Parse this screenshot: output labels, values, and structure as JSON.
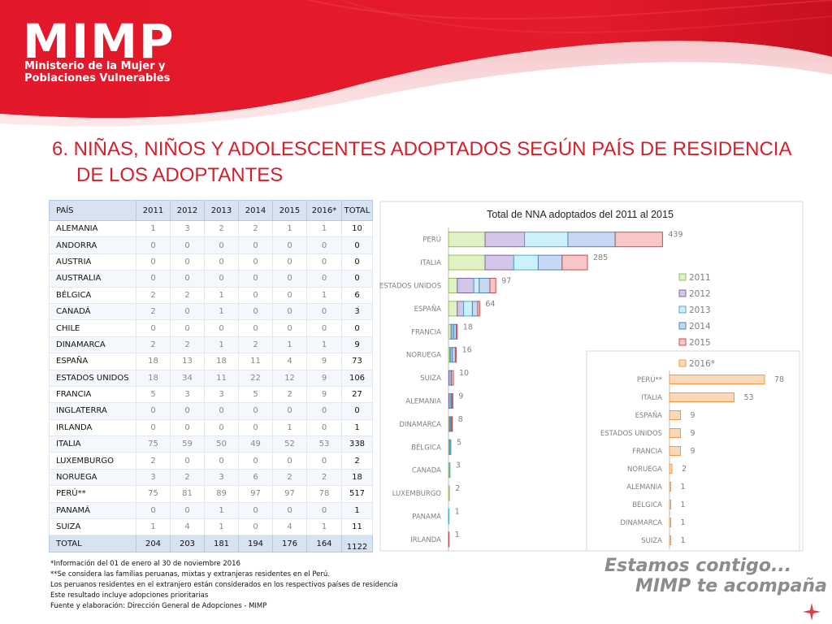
{
  "header": {
    "logo": "MIMP",
    "org_line1": "Ministerio de la Mujer y",
    "org_line2": "Poblaciones Vulnerables"
  },
  "title": {
    "line1": "6. NIÑAS, NIÑOS Y ADOLESCENTES ADOPTADOS SEGÚN PAÍS DE RESIDENCIA",
    "line2": "DE LOS ADOPTANTES"
  },
  "table": {
    "headers": [
      "PAÍS",
      "2011",
      "2012",
      "2013",
      "2014",
      "2015",
      "2016*",
      "TOTAL"
    ],
    "rows": [
      [
        "ALEMANIA",
        "1",
        "3",
        "2",
        "2",
        "1",
        "1",
        "10"
      ],
      [
        "ANDORRA",
        "0",
        "0",
        "0",
        "0",
        "0",
        "0",
        "0"
      ],
      [
        "AUSTRIA",
        "0",
        "0",
        "0",
        "0",
        "0",
        "0",
        "0"
      ],
      [
        "AUSTRALIA",
        "0",
        "0",
        "0",
        "0",
        "0",
        "0",
        "0"
      ],
      [
        "BÉLGICA",
        "2",
        "2",
        "1",
        "0",
        "0",
        "1",
        "6"
      ],
      [
        "CANADÁ",
        "2",
        "0",
        "1",
        "0",
        "0",
        "0",
        "3"
      ],
      [
        "CHILE",
        "0",
        "0",
        "0",
        "0",
        "0",
        "0",
        "0"
      ],
      [
        "DINAMARCA",
        "2",
        "2",
        "1",
        "2",
        "1",
        "1",
        "9"
      ],
      [
        "ESPAÑA",
        "18",
        "13",
        "18",
        "11",
        "4",
        "9",
        "73"
      ],
      [
        "ESTADOS UNIDOS",
        "18",
        "34",
        "11",
        "22",
        "12",
        "9",
        "106"
      ],
      [
        "FRANCIA",
        "5",
        "3",
        "3",
        "5",
        "2",
        "9",
        "27"
      ],
      [
        "INGLATERRA",
        "0",
        "0",
        "0",
        "0",
        "0",
        "0",
        "0"
      ],
      [
        "IRLANDA",
        "0",
        "0",
        "0",
        "0",
        "1",
        "0",
        "1"
      ],
      [
        "ITALIA",
        "75",
        "59",
        "50",
        "49",
        "52",
        "53",
        "338"
      ],
      [
        "LUXEMBURGO",
        "2",
        "0",
        "0",
        "0",
        "0",
        "0",
        "2"
      ],
      [
        "NORUEGA",
        "3",
        "2",
        "3",
        "6",
        "2",
        "2",
        "18"
      ],
      [
        "PERÚ**",
        "75",
        "81",
        "89",
        "97",
        "97",
        "78",
        "517"
      ],
      [
        "PANAMÁ",
        "0",
        "0",
        "1",
        "0",
        "0",
        "0",
        "1"
      ],
      [
        "SUIZA",
        "1",
        "4",
        "1",
        "0",
        "4",
        "1",
        "11"
      ]
    ],
    "total_row": [
      "TOTAL",
      "204",
      "203",
      "181",
      "194",
      "176",
      "164",
      "1122"
    ]
  },
  "notes": [
    "*Información del 01 de enero al 30 de noviembre 2016",
    "**Se considera las familias peruanas, mixtas y extranjeras residentes en el Perú.",
    "Los peruanos residentes en el extranjero están considerados en los respectivos países de residencia",
    "Este resultado incluye adopciones prioritarias",
    "Fuente y elaboración: Dirección General de Adopciones - MIMP"
  ],
  "slogan": {
    "line1": "Estamos contigo...",
    "line2": "MIMP te acompaña"
  },
  "colors": {
    "brand_red": "#d4202a",
    "s2011": "#dff2c6",
    "s2012": "#d3c6e8",
    "s2013": "#cdf1fa",
    "s2014": "#c6d8f3",
    "s2015": "#f9c6c7",
    "s2016": "#fbd8b8"
  },
  "chart_data": [
    {
      "type": "bar",
      "orientation": "horizontal",
      "stacked": true,
      "title": "Total de NNA adoptados del 2011 al 2015",
      "categories": [
        "PERÚ",
        "ITALIA",
        "ESTADOS UNIDOS",
        "ESPAÑA",
        "FRANCIA",
        "NORUEGA",
        "SUIZA",
        "ALEMANIA",
        "DINAMARCA",
        "BÉLGICA",
        "CANADA",
        "LUXEMBURGO",
        "PANAMÁ",
        "IRLANDA"
      ],
      "series": [
        {
          "name": "2011",
          "values": [
            75,
            75,
            18,
            18,
            5,
            3,
            1,
            1,
            2,
            2,
            2,
            2,
            0,
            0
          ]
        },
        {
          "name": "2012",
          "values": [
            81,
            59,
            34,
            13,
            3,
            2,
            4,
            3,
            2,
            2,
            0,
            0,
            0,
            0
          ]
        },
        {
          "name": "2013",
          "values": [
            89,
            50,
            11,
            18,
            3,
            3,
            1,
            2,
            1,
            1,
            1,
            0,
            1,
            0
          ]
        },
        {
          "name": "2014",
          "values": [
            97,
            49,
            22,
            11,
            5,
            6,
            0,
            2,
            2,
            0,
            0,
            0,
            0,
            0
          ]
        },
        {
          "name": "2015",
          "values": [
            97,
            52,
            12,
            4,
            2,
            2,
            4,
            1,
            1,
            0,
            0,
            0,
            0,
            1
          ]
        }
      ],
      "totals": [
        439,
        285,
        97,
        64,
        18,
        16,
        10,
        9,
        8,
        5,
        3,
        2,
        1,
        1
      ],
      "xlim": [
        0,
        520
      ],
      "legend": [
        "2011",
        "2012",
        "2013",
        "2014",
        "2015"
      ],
      "legend_position": "right",
      "grid": false
    },
    {
      "type": "bar",
      "orientation": "horizontal",
      "categories": [
        "PERÚ**",
        "ITALIA",
        "ESPAÑA",
        "ESTADOS UNIDOS",
        "FRANCIA",
        "NORUEGA",
        "ALEMANIA",
        "BÉLGICA",
        "DINAMARCA",
        "SUIZA"
      ],
      "series": [
        {
          "name": "2016*",
          "values": [
            78,
            53,
            9,
            9,
            9,
            2,
            1,
            1,
            1,
            1
          ]
        }
      ],
      "xlim": [
        0,
        100
      ],
      "legend": [
        "2016*"
      ],
      "legend_position": "top-left",
      "grid": false
    }
  ]
}
